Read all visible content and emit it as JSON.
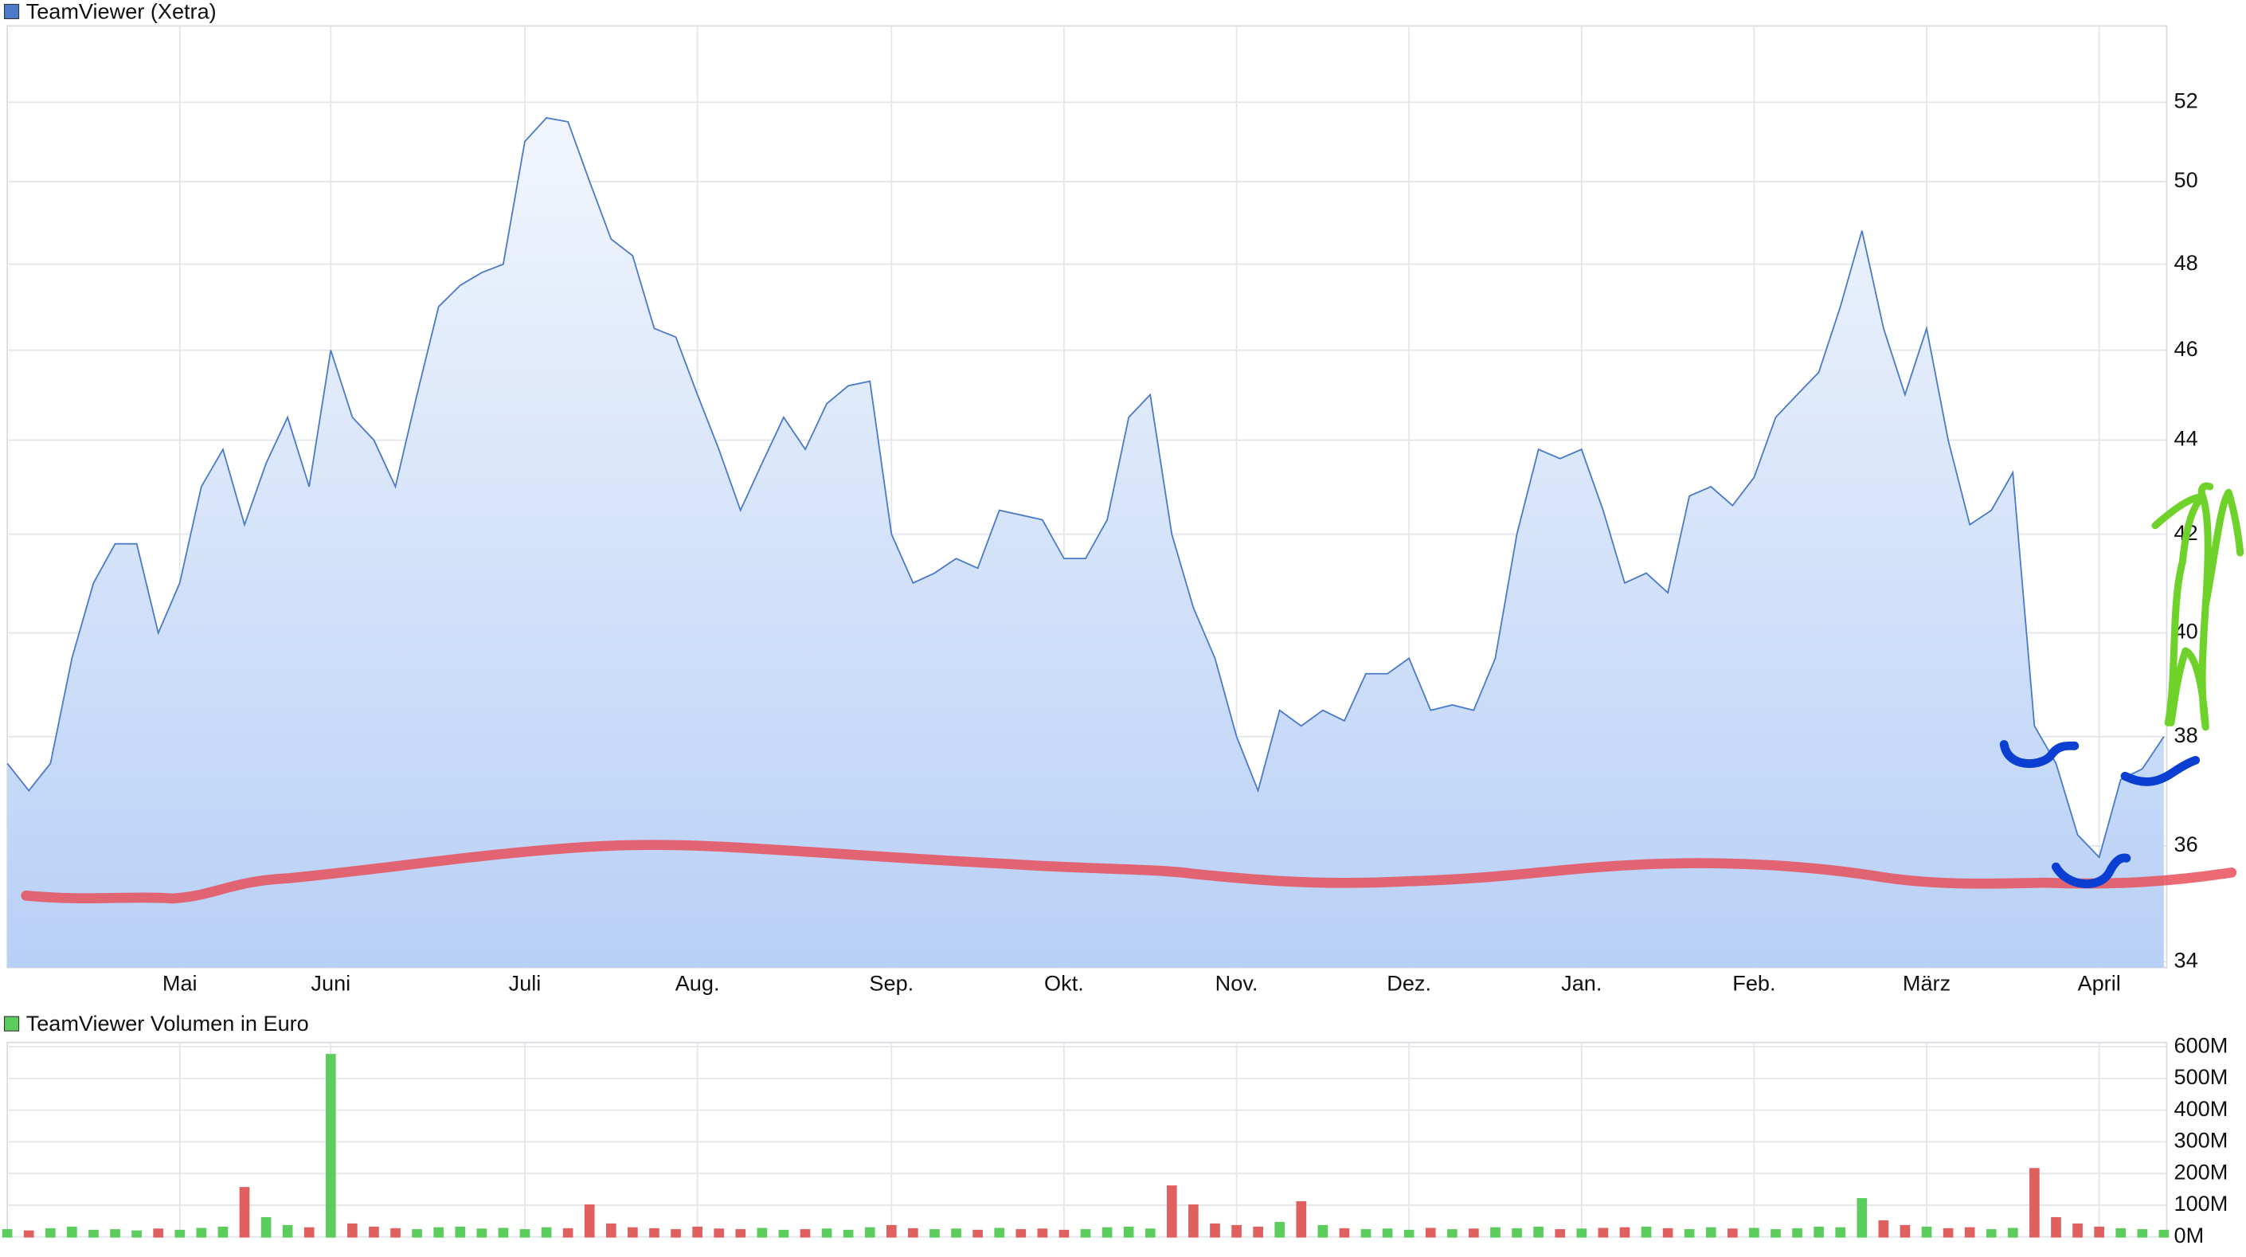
{
  "chart_data": [
    {
      "type": "area",
      "log_scale": true,
      "grid": true,
      "categories": [
        null,
        null,
        null,
        null,
        null,
        null,
        null,
        null,
        "Mai",
        null,
        null,
        null,
        null,
        null,
        null,
        "Juni",
        null,
        null,
        null,
        null,
        null,
        null,
        null,
        null,
        "Juli",
        null,
        null,
        null,
        null,
        null,
        null,
        null,
        "Aug.",
        null,
        null,
        null,
        null,
        null,
        null,
        null,
        null,
        "Sep.",
        null,
        null,
        null,
        null,
        null,
        null,
        null,
        "Okt.",
        null,
        null,
        null,
        null,
        null,
        null,
        null,
        "Nov.",
        null,
        null,
        null,
        null,
        null,
        null,
        null,
        "Dez.",
        null,
        null,
        null,
        null,
        null,
        null,
        null,
        "Jan.",
        null,
        null,
        null,
        null,
        null,
        null,
        null,
        "Feb.",
        null,
        null,
        null,
        null,
        null,
        null,
        null,
        "März",
        null,
        null,
        null,
        null,
        null,
        null,
        null,
        "April",
        null,
        null,
        null
      ],
      "series": [
        {
          "name": "TeamViewer (Xetra)",
          "color": "#4a7ac8",
          "values": [
            37.5,
            37,
            37.5,
            39.5,
            41,
            41.8,
            41.8,
            40,
            41,
            43,
            43.8,
            42.2,
            43.5,
            44.5,
            43,
            46,
            44.5,
            44,
            43,
            45,
            47,
            47.5,
            47.8,
            48,
            51,
            51.6,
            51.5,
            50,
            48.6,
            48.2,
            46.5,
            46.3,
            45,
            43.8,
            42.5,
            43.5,
            44.5,
            43.8,
            44.8,
            45.2,
            45.3,
            42,
            41,
            41.2,
            41.5,
            41.3,
            42.5,
            42.4,
            42.3,
            41.5,
            41.5,
            42.3,
            44.5,
            45,
            42,
            40.5,
            39.5,
            38,
            37,
            38.5,
            38.2,
            38.5,
            38.3,
            39.2,
            39.2,
            39.5,
            38.5,
            38.6,
            38.5,
            39.5,
            42,
            43.8,
            43.6,
            43.8,
            42.5,
            41,
            41.2,
            40.8,
            42.8,
            43,
            42.6,
            43.2,
            44.5,
            45,
            45.5,
            47,
            48.8,
            46.5,
            45,
            46.5,
            44,
            42.2,
            42.5,
            43.3,
            38.2,
            37.5,
            36.2,
            35.8,
            37.2,
            37.4,
            38
          ]
        }
      ],
      "ylim": [
        33.9,
        54.0
      ],
      "yticks": [
        34,
        36,
        38,
        40,
        42,
        44,
        46,
        48,
        50,
        52
      ]
    },
    {
      "type": "bar",
      "grid": true,
      "up_color": "#5ccc5c",
      "down_color": "#e06060",
      "series": [
        {
          "name": "TeamViewer Volumen in Euro",
          "color": "#5ccc5c",
          "values": [
            22000000,
            18000000,
            25000000,
            30000000,
            20000000,
            22000000,
            18000000,
            24000000,
            20000000,
            26000000,
            30000000,
            155000000,
            60000000,
            35000000,
            28000000,
            575000000,
            40000000,
            30000000,
            25000000,
            22000000,
            28000000,
            30000000,
            24000000,
            26000000,
            22000000,
            28000000,
            25000000,
            100000000,
            40000000,
            28000000,
            25000000,
            22000000,
            30000000,
            24000000,
            22000000,
            26000000,
            20000000,
            22000000,
            24000000,
            20000000,
            28000000,
            35000000,
            25000000,
            22000000,
            24000000,
            20000000,
            26000000,
            22000000,
            24000000,
            20000000,
            22000000,
            28000000,
            30000000,
            24000000,
            160000000,
            100000000,
            40000000,
            35000000,
            30000000,
            45000000,
            110000000,
            35000000,
            25000000,
            22000000,
            24000000,
            20000000,
            26000000,
            22000000,
            24000000,
            28000000,
            25000000,
            30000000,
            22000000,
            24000000,
            26000000,
            28000000,
            30000000,
            25000000,
            22000000,
            28000000,
            24000000,
            26000000,
            22000000,
            25000000,
            30000000,
            28000000,
            120000000,
            50000000,
            35000000,
            30000000,
            25000000,
            28000000,
            22000000,
            26000000,
            215000000,
            60000000,
            40000000,
            30000000,
            25000000,
            22000000,
            20000000
          ]
        }
      ],
      "ylim": [
        0,
        600000000
      ],
      "yticks": [
        {
          "value": 0,
          "label": "0M"
        },
        {
          "value": 100000000,
          "label": "100M"
        },
        {
          "value": 200000000,
          "label": "200M"
        },
        {
          "value": 300000000,
          "label": "300M"
        },
        {
          "value": 400000000,
          "label": "400M"
        },
        {
          "value": 500000000,
          "label": "500M"
        },
        {
          "value": 600000000,
          "label": "600M"
        }
      ]
    }
  ]
}
